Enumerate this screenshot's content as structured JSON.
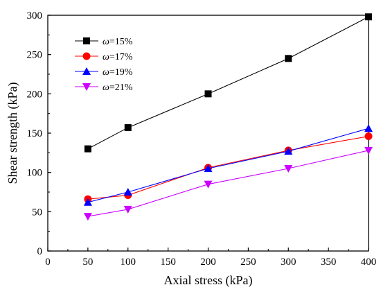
{
  "chart_data": {
    "type": "line",
    "xlabel": "Axial stress (kPa)",
    "ylabel": "Shear strength (kPa)",
    "xlim": [
      0,
      400
    ],
    "ylim": [
      0,
      300
    ],
    "xticks": [
      "0",
      "50",
      "100",
      "150",
      "200",
      "250",
      "300",
      "350",
      "400"
    ],
    "yticks": [
      "0",
      "50",
      "100",
      "150",
      "200",
      "250",
      "300"
    ],
    "grid": false,
    "legend_position": "top-left",
    "x": [
      50,
      100,
      200,
      300,
      400
    ],
    "series": [
      {
        "name": "ω=15%",
        "symbol": "ω",
        "label_rest": "=15%",
        "marker": "square",
        "color": "#000000",
        "values": [
          130,
          157,
          200,
          245,
          298
        ]
      },
      {
        "name": "ω=17%",
        "symbol": "ω",
        "label_rest": "=17%",
        "marker": "circle",
        "color": "#ff0000",
        "values": [
          66,
          71,
          106,
          128,
          146
        ]
      },
      {
        "name": "ω=19%",
        "symbol": "ω",
        "label_rest": "=19%",
        "marker": "triangle-up",
        "color": "#0000ff",
        "values": [
          62,
          75,
          105,
          127,
          156
        ]
      },
      {
        "name": "ω=21%",
        "symbol": "ω",
        "label_rest": "=21%",
        "marker": "triangle-down",
        "color": "#cc00ff",
        "values": [
          44,
          53,
          85,
          105,
          128
        ]
      }
    ]
  }
}
